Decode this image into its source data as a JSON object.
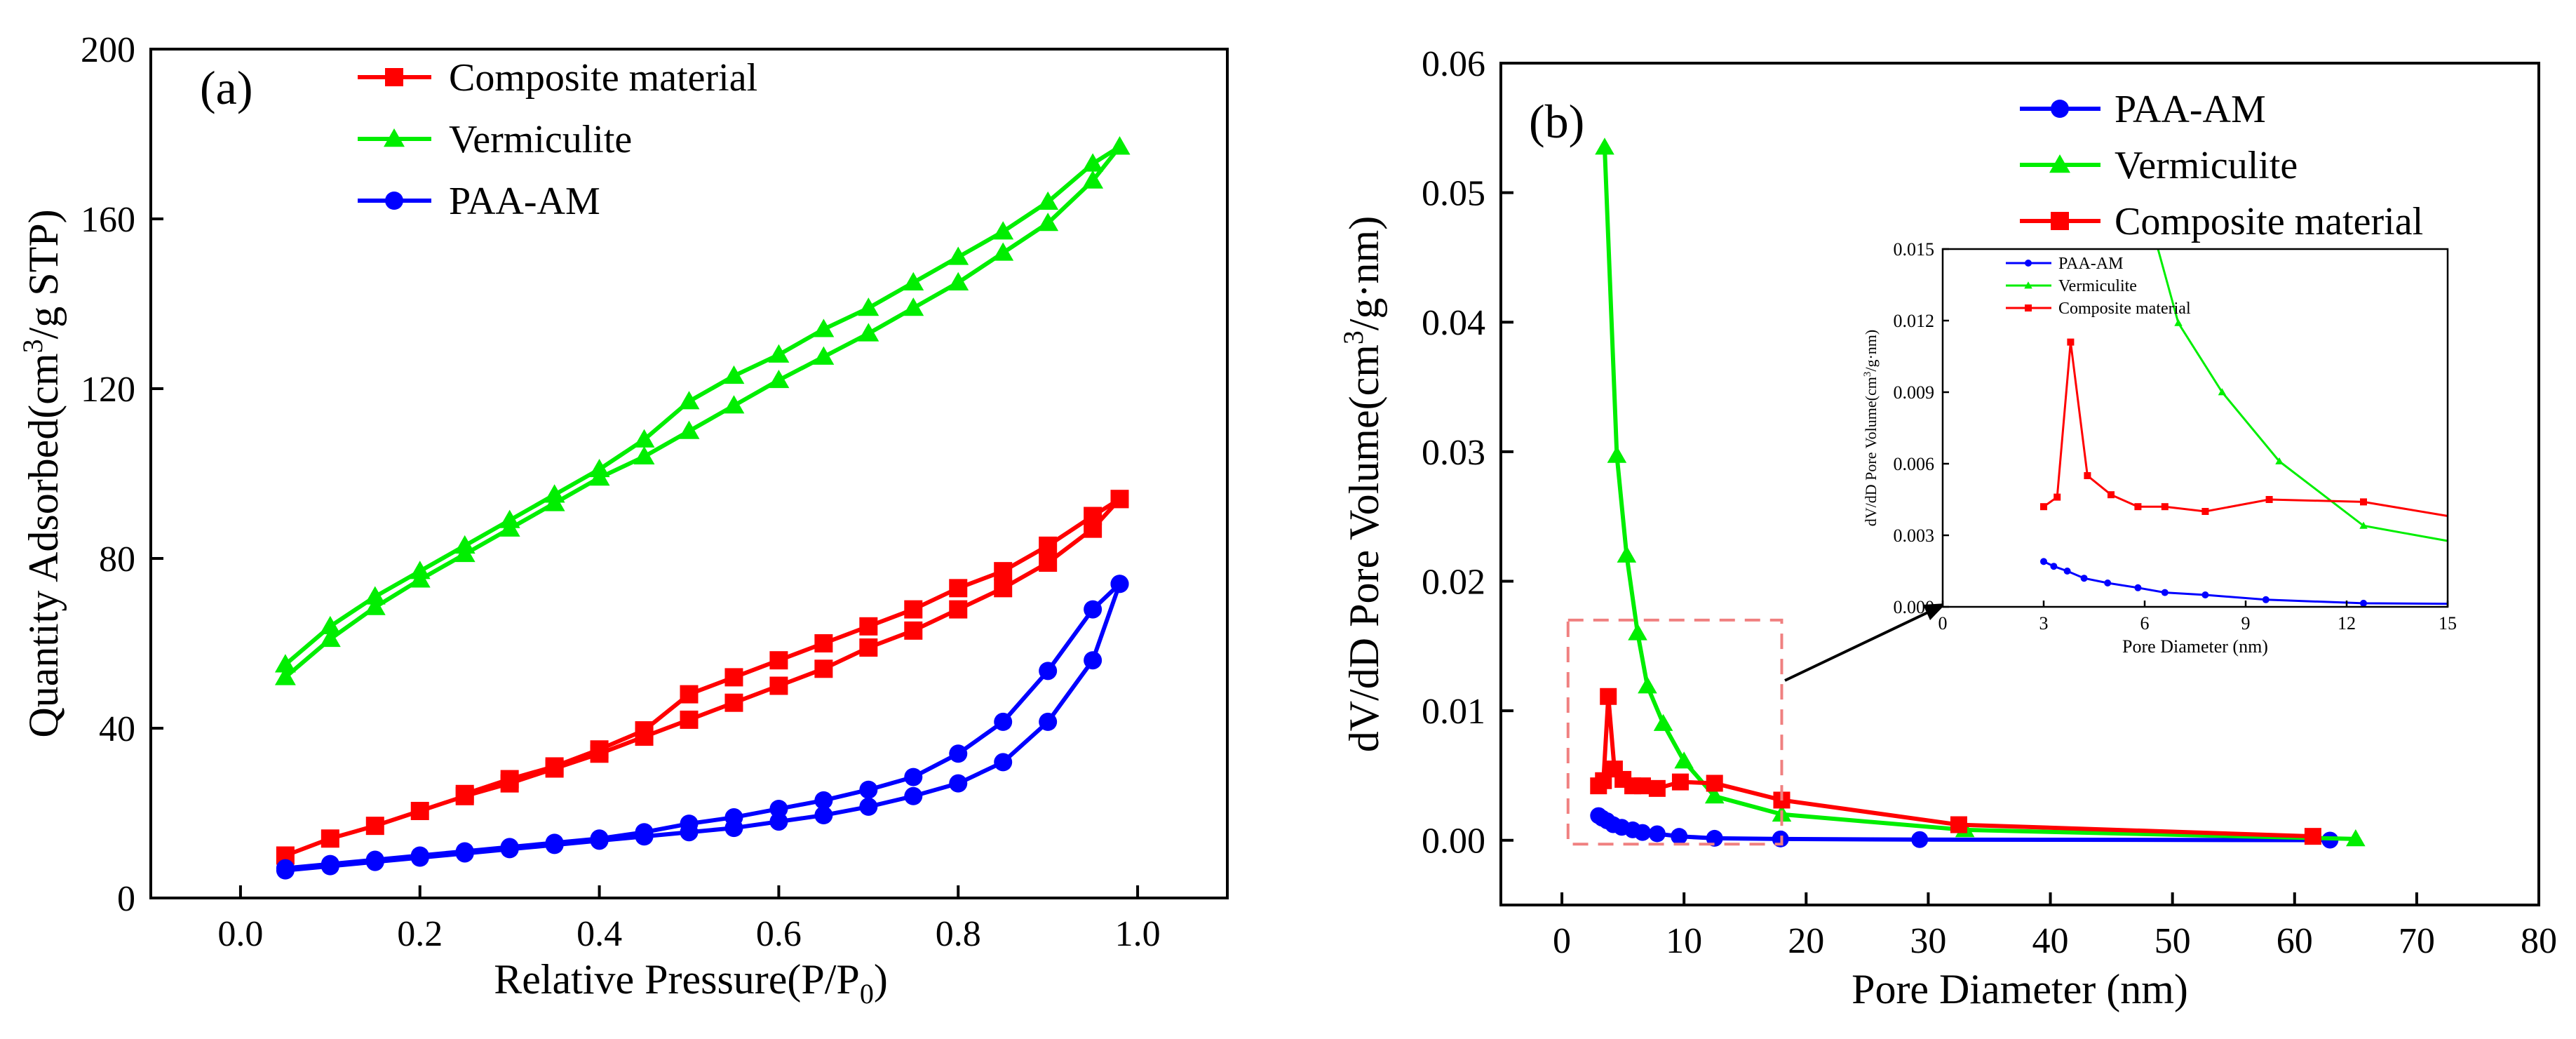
{
  "chart_data": [
    {
      "type": "line",
      "panel_label": "(a)",
      "title": "",
      "xlabel": "Relative Pressure(P/P",
      "xlabel_sub": "0",
      "xlabel_tail": ")",
      "ylabel_pre": "Quantity Adsorbed(cm",
      "ylabel_sup": "3",
      "ylabel_post": "/g STP)",
      "xlim": [
        -0.1,
        1.1
      ],
      "ylim": [
        0,
        200
      ],
      "xticks": [
        "0.0",
        "0.2",
        "0.4",
        "0.6",
        "0.8",
        "1.0"
      ],
      "yticks": [
        "0",
        "40",
        "80",
        "120",
        "160",
        "200"
      ],
      "legend_position": "top-left",
      "series": [
        {
          "name": "Composite material",
          "color": "#ff0000",
          "marker": "square",
          "adsorption": {
            "x": [
              0.05,
              0.1,
              0.15,
              0.2,
              0.25,
              0.3,
              0.35,
              0.4,
              0.45,
              0.5,
              0.55,
              0.6,
              0.65,
              0.7,
              0.75,
              0.8,
              0.85,
              0.9,
              0.95,
              0.98
            ],
            "y": [
              10,
              14,
              17,
              20.5,
              24,
              27,
              30.5,
              34,
              38,
              42,
              46,
              50,
              54,
              59,
              63,
              68,
              73,
              79,
              87,
              94
            ]
          },
          "desorption": {
            "x": [
              0.98,
              0.95,
              0.9,
              0.85,
              0.8,
              0.75,
              0.7,
              0.65,
              0.6,
              0.55,
              0.5,
              0.45,
              0.4,
              0.35,
              0.3,
              0.25
            ],
            "y": [
              94,
              90,
              83,
              77,
              73,
              68,
              64,
              60,
              56,
              52,
              48,
              39.5,
              35,
              31,
              28,
              24.5
            ]
          }
        },
        {
          "name": "Vermiculite",
          "color": "#00ee00",
          "marker": "triangle",
          "adsorption": {
            "x": [
              0.05,
              0.1,
              0.15,
              0.2,
              0.25,
              0.3,
              0.35,
              0.4,
              0.45,
              0.5,
              0.55,
              0.6,
              0.65,
              0.7,
              0.75,
              0.8,
              0.85,
              0.9,
              0.95,
              0.98
            ],
            "y": [
              52,
              61,
              68.5,
              75,
              81,
              87,
              93,
              99,
              104,
              110,
              116,
              122,
              127.5,
              133,
              139,
              145,
              152,
              159,
              169,
              177
            ]
          },
          "desorption": {
            "x": [
              0.98,
              0.95,
              0.9,
              0.85,
              0.8,
              0.75,
              0.7,
              0.65,
              0.6,
              0.55,
              0.5,
              0.45,
              0.4,
              0.35,
              0.3,
              0.25,
              0.2,
              0.15,
              0.1,
              0.05
            ],
            "y": [
              177,
              173,
              164,
              157,
              151,
              145,
              139,
              134,
              128,
              123,
              117,
              108,
              101,
              95,
              89,
              83,
              77,
              71,
              64,
              55
            ]
          }
        },
        {
          "name": "PAA-AM",
          "color": "#0000ff",
          "marker": "circle",
          "adsorption": {
            "x": [
              0.05,
              0.1,
              0.15,
              0.2,
              0.25,
              0.3,
              0.35,
              0.4,
              0.45,
              0.5,
              0.55,
              0.6,
              0.65,
              0.7,
              0.75,
              0.8,
              0.85,
              0.9,
              0.95,
              0.98
            ],
            "y": [
              6.5,
              7.5,
              8.5,
              9.5,
              10.5,
              11.5,
              12.5,
              13.5,
              14.5,
              15.5,
              16.5,
              18,
              19.5,
              21.5,
              24,
              27,
              32,
              41.5,
              56,
              74
            ]
          },
          "desorption": {
            "x": [
              0.98,
              0.95,
              0.9,
              0.85,
              0.8,
              0.75,
              0.7,
              0.65,
              0.6,
              0.55,
              0.5,
              0.45,
              0.4,
              0.35,
              0.3,
              0.25,
              0.2,
              0.15,
              0.1,
              0.05
            ],
            "y": [
              74,
              68,
              53.5,
              41.5,
              34,
              28.5,
              25.5,
              23,
              21,
              19,
              17.5,
              15.5,
              14,
              13,
              12,
              11,
              10,
              9,
              8,
              7
            ]
          }
        }
      ]
    },
    {
      "type": "line",
      "panel_label": "(b)",
      "title": "",
      "xlabel": "Pore Diameter (nm)",
      "ylabel_pre": "dV/dD Pore Volume(cm",
      "ylabel_sup": "3",
      "ylabel_post": "/g·nm)",
      "xlim": [
        -5,
        80
      ],
      "ylim": [
        -0.005,
        0.06
      ],
      "xticks": [
        "0",
        "10",
        "20",
        "30",
        "40",
        "50",
        "60",
        "70",
        "80"
      ],
      "yticks": [
        "0.00",
        "0.01",
        "0.02",
        "0.03",
        "0.04",
        "0.05",
        "0.06"
      ],
      "legend_position": "top-right",
      "series": [
        {
          "name": "PAA-AM",
          "color": "#0000ff",
          "marker": "circle",
          "x": [
            3.0,
            3.3,
            3.7,
            4.2,
            4.9,
            5.8,
            6.6,
            7.8,
            9.6,
            12.5,
            17.9,
            29.3,
            62.9
          ],
          "y": [
            0.0019,
            0.0017,
            0.0015,
            0.0012,
            0.001,
            0.0008,
            0.0006,
            0.0005,
            0.0003,
            0.00015,
            0.0001,
            5e-05,
            1e-05
          ]
        },
        {
          "name": "Vermiculite",
          "color": "#00ee00",
          "marker": "triangle",
          "x": [
            3.5,
            4.5,
            5.3,
            6.2,
            7.0,
            8.3,
            10.0,
            12.5,
            18.0,
            33.0,
            65.0
          ],
          "y": [
            0.0535,
            0.0297,
            0.022,
            0.016,
            0.0119,
            0.009,
            0.0061,
            0.0034,
            0.002,
            0.0008,
            0.0001
          ]
        },
        {
          "name": "Composite material",
          "color": "#ff0000",
          "marker": "square",
          "x": [
            3.0,
            3.4,
            3.8,
            4.3,
            5.0,
            5.8,
            6.6,
            7.8,
            9.7,
            12.5,
            18.0,
            32.5,
            61.5
          ],
          "y": [
            0.0042,
            0.0046,
            0.0111,
            0.0055,
            0.0047,
            0.0042,
            0.0042,
            0.004,
            0.0045,
            0.0044,
            0.0031,
            0.0012,
            0.0003
          ]
        }
      ],
      "highlight_box": {
        "xrange": [
          0.5,
          18
        ],
        "yrange": [
          -0.0003,
          0.017
        ]
      },
      "inset": {
        "xlabel": "Pore Diameter (nm)",
        "ylabel_pre": "dV/dD Pore Volume(cm",
        "ylabel_sup": "3",
        "ylabel_post": "/g·nm)",
        "xlim": [
          0,
          15
        ],
        "ylim": [
          0,
          0.015
        ],
        "xticks": [
          "0",
          "3",
          "6",
          "9",
          "12",
          "15"
        ],
        "yticks": [
          "0.000",
          "0.003",
          "0.006",
          "0.009",
          "0.012",
          "0.015"
        ],
        "legend": [
          "PAA-AM",
          "Vermiculite",
          "Composite material"
        ]
      }
    }
  ]
}
